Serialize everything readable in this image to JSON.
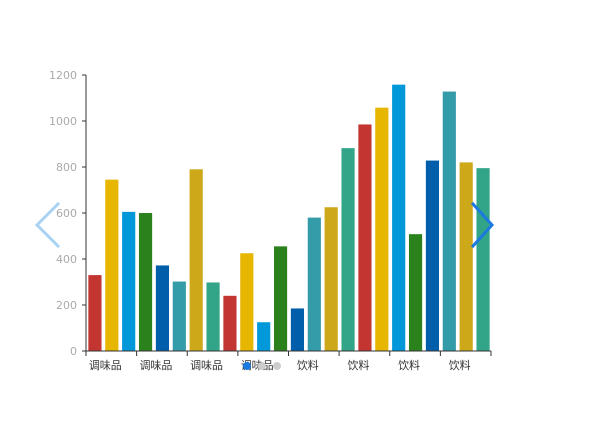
{
  "chart_data": {
    "type": "bar",
    "title": "",
    "xlabel": "",
    "ylabel": "",
    "ylim": [
      0,
      1200
    ],
    "yticks": [
      0,
      200,
      400,
      600,
      800,
      1000,
      1200
    ],
    "grid": false,
    "legend": "none",
    "category_labels": [
      "调味品",
      "调味品",
      "调味品",
      "调味品",
      "饮料",
      "饮料",
      "饮料",
      "饮料"
    ],
    "values": [
      330,
      745,
      605,
      600,
      372,
      302,
      790,
      298,
      240,
      425,
      125,
      455,
      185,
      580,
      625,
      882,
      985,
      1058,
      1158,
      508,
      828,
      1128,
      820,
      795
    ],
    "colors": [
      "#c23531",
      "#e6b600",
      "#0098d9",
      "#2b821d",
      "#005eaa",
      "#339ca8",
      "#cda819",
      "#32a487",
      "#c23531",
      "#e6b600",
      "#0098d9",
      "#2b821d",
      "#005eaa",
      "#339ca8",
      "#cda819",
      "#32a487",
      "#c23531",
      "#e6b600",
      "#0098d9",
      "#2b821d",
      "#005eaa",
      "#339ca8",
      "#cda819",
      "#32a487"
    ]
  },
  "pagination": {
    "count": 3,
    "active": 0,
    "active_color": "#1a7ae0",
    "inactive_color": "#cccccc"
  },
  "navigation": {
    "prev_icon": "chevron-left-icon",
    "next_icon": "chevron-right-icon",
    "prev_color": "#a9d3f5",
    "next_color": "#1a7ae0"
  }
}
